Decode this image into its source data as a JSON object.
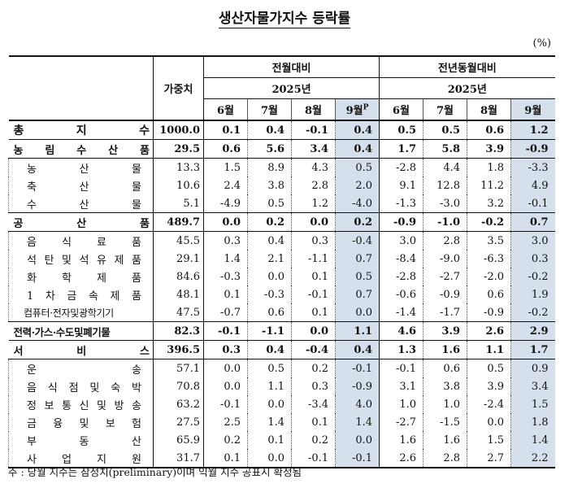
{
  "title": "생산자물가지수 등락률",
  "unit": "(%)",
  "headers": {
    "weight": "가중치",
    "group1": "전월대비",
    "group2": "전년동월대비",
    "year1": "2025년",
    "year2": "2025년",
    "months": [
      "6월",
      "7월",
      "8월",
      "9월"
    ],
    "prelim_sup": "P"
  },
  "rows": [
    {
      "label": "총 지 수",
      "kind": "total",
      "weight": "1000.0",
      "mom": [
        "0.1",
        "0.4",
        "-0.1",
        "0.4"
      ],
      "yoy": [
        "0.5",
        "0.5",
        "0.6",
        "1.2"
      ]
    },
    {
      "label": "농 림 수 산 품",
      "kind": "cat",
      "weight": "29.5",
      "mom": [
        "0.6",
        "5.6",
        "3.4",
        "0.4"
      ],
      "yoy": [
        "1.7",
        "5.8",
        "3.9",
        "-0.9"
      ]
    },
    {
      "label": "농 산 물",
      "kind": "sub",
      "weight": "13.3",
      "mom": [
        "1.5",
        "8.9",
        "4.3",
        "0.5"
      ],
      "yoy": [
        "-2.8",
        "4.4",
        "1.8",
        "-3.3"
      ]
    },
    {
      "label": "축 산 물",
      "kind": "sub",
      "weight": "10.6",
      "mom": [
        "2.4",
        "3.8",
        "2.8",
        "2.0"
      ],
      "yoy": [
        "9.1",
        "12.8",
        "11.2",
        "4.9"
      ]
    },
    {
      "label": "수 산 물",
      "kind": "sub",
      "weight": "5.1",
      "mom": [
        "-4.9",
        "0.5",
        "1.2",
        "-4.0"
      ],
      "yoy": [
        "-1.3",
        "-3.0",
        "3.2",
        "-0.1"
      ]
    },
    {
      "label": "공 산 품",
      "kind": "cat",
      "weight": "489.7",
      "mom": [
        "0.0",
        "0.2",
        "0.0",
        "0.2"
      ],
      "yoy": [
        "-0.9",
        "-1.0",
        "-0.2",
        "0.7"
      ]
    },
    {
      "label": "음 식 료 품",
      "kind": "sub",
      "weight": "45.5",
      "mom": [
        "0.3",
        "0.4",
        "0.3",
        "-0.4"
      ],
      "yoy": [
        "3.0",
        "2.8",
        "3.5",
        "3.0"
      ]
    },
    {
      "label": "석 탄 및 석 유 제 품",
      "kind": "sub",
      "weight": "29.1",
      "mom": [
        "1.4",
        "2.1",
        "-1.1",
        "0.7"
      ],
      "yoy": [
        "-8.4",
        "-9.0",
        "-6.3",
        "0.3"
      ]
    },
    {
      "label": "화 학 제 품",
      "kind": "sub",
      "weight": "84.6",
      "mom": [
        "-0.3",
        "0.0",
        "0.1",
        "0.5"
      ],
      "yoy": [
        "-2.8",
        "-2.7",
        "-2.0",
        "-0.2"
      ]
    },
    {
      "label": "1 차 금 속 제 품",
      "kind": "sub",
      "weight": "48.1",
      "mom": [
        "0.1",
        "-0.3",
        "-0.1",
        "0.7"
      ],
      "yoy": [
        "-0.6",
        "-0.9",
        "0.6",
        "1.9"
      ]
    },
    {
      "label": "컴퓨터·전자및광학기기",
      "kind": "sub2",
      "weight": "47.5",
      "mom": [
        "-0.7",
        "0.6",
        "0.1",
        "0.0"
      ],
      "yoy": [
        "-1.4",
        "-1.7",
        "-0.9",
        "-0.2"
      ]
    },
    {
      "label": "전력·가스·수도및폐기물",
      "kind": "cat2",
      "weight": "82.3",
      "mom": [
        "-0.1",
        "-1.1",
        "0.0",
        "1.1"
      ],
      "yoy": [
        "4.6",
        "3.9",
        "2.6",
        "2.9"
      ]
    },
    {
      "label": "서 비 스",
      "kind": "cat",
      "weight": "396.5",
      "mom": [
        "0.3",
        "0.4",
        "-0.4",
        "0.4"
      ],
      "yoy": [
        "1.3",
        "1.6",
        "1.1",
        "1.7"
      ]
    },
    {
      "label": "운 송",
      "kind": "sub",
      "weight": "57.1",
      "mom": [
        "0.0",
        "0.5",
        "0.2",
        "-0.1"
      ],
      "yoy": [
        "-0.1",
        "0.6",
        "0.5",
        "0.9"
      ]
    },
    {
      "label": "음 식 점 및 숙 박",
      "kind": "sub",
      "weight": "70.8",
      "mom": [
        "0.0",
        "1.1",
        "0.3",
        "-0.9"
      ],
      "yoy": [
        "3.1",
        "3.8",
        "3.9",
        "3.4"
      ]
    },
    {
      "label": "정 보 통 신 및 방 송",
      "kind": "sub",
      "weight": "63.2",
      "mom": [
        "-0.1",
        "0.0",
        "-3.4",
        "4.0"
      ],
      "yoy": [
        "1.0",
        "1.0",
        "-2.4",
        "1.5"
      ]
    },
    {
      "label": "금 융 및 보 험",
      "kind": "sub",
      "weight": "27.5",
      "mom": [
        "2.5",
        "1.4",
        "0.1",
        "1.4"
      ],
      "yoy": [
        "-2.7",
        "-1.5",
        "0.0",
        "1.8"
      ]
    },
    {
      "label": "부 동 산",
      "kind": "sub",
      "weight": "65.9",
      "mom": [
        "0.2",
        "0.1",
        "0.2",
        "0.0"
      ],
      "yoy": [
        "1.6",
        "1.6",
        "1.5",
        "1.4"
      ]
    },
    {
      "label": "사 업 지 원",
      "kind": "sub",
      "weight": "31.7",
      "mom": [
        "0.1",
        "0.0",
        "-0.1",
        "-0.1"
      ],
      "yoy": [
        "2.6",
        "2.8",
        "2.7",
        "2.2"
      ]
    }
  ],
  "note": "주 : 당월 지수는 잠정치(preliminary)이며 익월 지수 공표시 확정됨",
  "colors": {
    "highlight": "#d6e0ec",
    "text": "#111111"
  }
}
